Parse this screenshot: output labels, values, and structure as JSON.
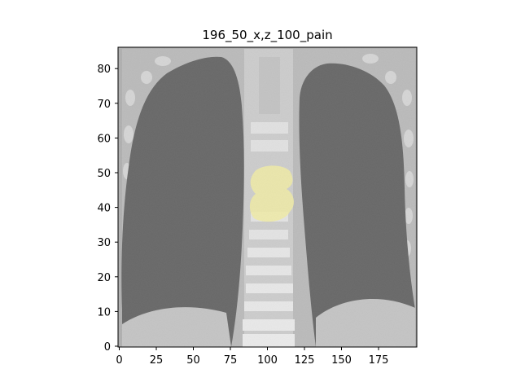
{
  "title": "196_50_x,z_100_pain",
  "axes": {
    "x_ticks": [
      "0",
      "25",
      "50",
      "75",
      "100",
      "125",
      "150",
      "175"
    ],
    "y_ticks": [
      "0",
      "10",
      "20",
      "30",
      "40",
      "50",
      "60",
      "70",
      "80"
    ]
  },
  "image": {
    "description_kind": "grayscale coronal CT slice with yellow overlay",
    "overlay_color": "#e9e27a"
  }
}
